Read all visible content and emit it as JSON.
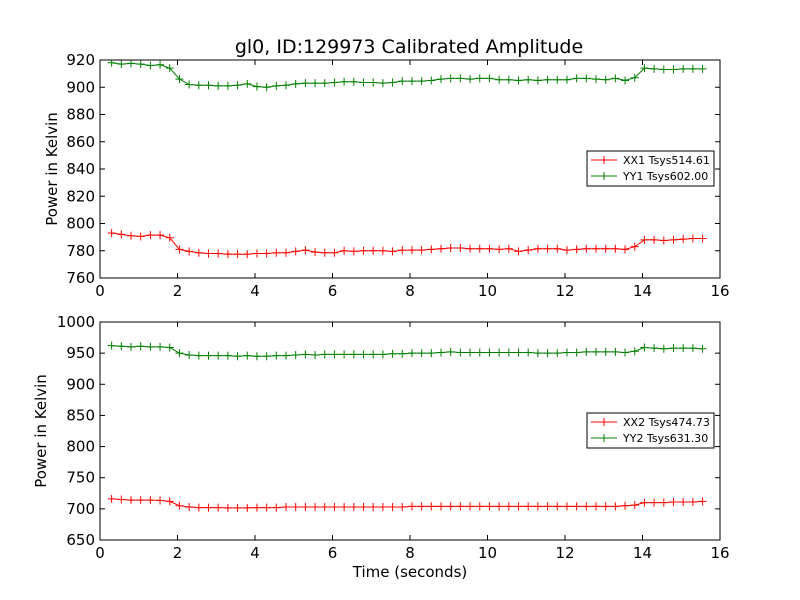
{
  "chart_data": [
    {
      "type": "line",
      "title": "gl0, ID:129973 Calibrated Amplitude",
      "xlabel": "",
      "ylabel": "Power in Kelvin",
      "xlim": [
        0,
        16
      ],
      "ylim": [
        760,
        920
      ],
      "xticks": [
        "0",
        "2",
        "4",
        "6",
        "8",
        "10",
        "12",
        "14",
        "16"
      ],
      "yticks": [
        "760",
        "780",
        "800",
        "820",
        "840",
        "860",
        "880",
        "900",
        "920"
      ],
      "legend_position": "center-right",
      "x": [
        0.3,
        0.55,
        0.8,
        1.05,
        1.3,
        1.55,
        1.8,
        2.05,
        2.3,
        2.55,
        2.8,
        3.05,
        3.3,
        3.55,
        3.8,
        4.05,
        4.3,
        4.55,
        4.8,
        5.05,
        5.3,
        5.55,
        5.8,
        6.05,
        6.3,
        6.55,
        6.8,
        7.05,
        7.3,
        7.55,
        7.8,
        8.05,
        8.3,
        8.55,
        8.8,
        9.05,
        9.3,
        9.55,
        9.8,
        10.05,
        10.3,
        10.55,
        10.8,
        11.05,
        11.3,
        11.55,
        11.8,
        12.05,
        12.3,
        12.55,
        12.8,
        13.05,
        13.3,
        13.55,
        13.8,
        14.05,
        14.3,
        14.55,
        14.8,
        15.05,
        15.3,
        15.55
      ],
      "series": [
        {
          "name": "XX1 Tsys514.61",
          "color": "#ff0000",
          "values": [
            793,
            792,
            791,
            790.5,
            791.5,
            791.5,
            789.5,
            781,
            779.5,
            778.5,
            778,
            778,
            777.5,
            777.5,
            777.5,
            778,
            778,
            778.5,
            778.5,
            779.5,
            780.5,
            779,
            778.5,
            778.5,
            780,
            779.5,
            780,
            780,
            780,
            779.5,
            780.5,
            780.5,
            780.5,
            781,
            781.5,
            782,
            782,
            781.5,
            781.5,
            781.5,
            781,
            781.5,
            779.5,
            780.5,
            781.5,
            781.5,
            781.5,
            780.5,
            781,
            781.5,
            781.5,
            781.5,
            781.5,
            781,
            783,
            788,
            788,
            787.5,
            788,
            788.5,
            789,
            789
          ]
        },
        {
          "name": "YY1 Tsys602.00",
          "color": "#008000",
          "values": [
            918,
            917,
            917.5,
            917,
            916,
            916.5,
            914,
            906,
            902,
            901.5,
            901.5,
            901,
            901,
            901.5,
            902.5,
            900.5,
            900,
            901,
            901.5,
            902.5,
            903,
            903,
            903,
            903.5,
            904,
            904,
            903.5,
            903.5,
            903,
            903.5,
            904.5,
            904.5,
            904.5,
            905,
            906,
            906.5,
            906.5,
            906,
            906.5,
            906.5,
            905.5,
            905.5,
            905,
            905.5,
            905,
            905.5,
            905.5,
            905.5,
            906.5,
            906.5,
            906,
            905.5,
            906.5,
            905,
            907,
            914,
            913.5,
            913,
            913,
            913.5,
            913.5,
            913.5
          ]
        }
      ]
    },
    {
      "type": "line",
      "title": "",
      "xlabel": "Time (seconds)",
      "ylabel": "Power in Kelvin",
      "xlim": [
        0,
        16
      ],
      "ylim": [
        650,
        1000
      ],
      "xticks": [
        "0",
        "2",
        "4",
        "6",
        "8",
        "10",
        "12",
        "14",
        "16"
      ],
      "yticks": [
        "650",
        "700",
        "750",
        "800",
        "850",
        "900",
        "950",
        "1000"
      ],
      "legend_position": "center-right",
      "x": [
        0.3,
        0.55,
        0.8,
        1.05,
        1.3,
        1.55,
        1.8,
        2.05,
        2.3,
        2.55,
        2.8,
        3.05,
        3.3,
        3.55,
        3.8,
        4.05,
        4.3,
        4.55,
        4.8,
        5.05,
        5.3,
        5.55,
        5.8,
        6.05,
        6.3,
        6.55,
        6.8,
        7.05,
        7.3,
        7.55,
        7.8,
        8.05,
        8.3,
        8.55,
        8.8,
        9.05,
        9.3,
        9.55,
        9.8,
        10.05,
        10.3,
        10.55,
        10.8,
        11.05,
        11.3,
        11.55,
        11.8,
        12.05,
        12.3,
        12.55,
        12.8,
        13.05,
        13.3,
        13.55,
        13.8,
        14.05,
        14.3,
        14.55,
        14.8,
        15.05,
        15.3,
        15.55
      ],
      "series": [
        {
          "name": "XX2 Tsys474.73",
          "color": "#ff0000",
          "values": [
            716,
            715,
            714,
            714,
            714,
            713.5,
            712,
            705,
            703,
            702,
            702,
            702,
            701.5,
            701.5,
            701.5,
            702,
            702,
            702,
            703,
            703,
            703,
            703,
            703,
            703,
            703,
            703,
            703,
            703,
            703,
            703,
            703,
            704,
            704,
            704,
            704,
            704,
            704,
            704,
            704,
            704,
            704,
            704,
            704,
            704,
            704,
            704,
            704,
            704,
            704,
            704,
            704,
            704,
            704,
            705,
            706,
            710,
            710,
            710,
            711,
            711,
            711,
            712
          ]
        },
        {
          "name": "YY2 Tsys631.30",
          "color": "#008000",
          "values": [
            962,
            961,
            960,
            961,
            960,
            960,
            959,
            950,
            947,
            946,
            946,
            946,
            946,
            945,
            946,
            945,
            945,
            946,
            946,
            947,
            948,
            947,
            948,
            948,
            948,
            948,
            948,
            948,
            948,
            949,
            949,
            950,
            950,
            950,
            951,
            952,
            951,
            951,
            951,
            951,
            951,
            951,
            951,
            951,
            950,
            950,
            950,
            951,
            951,
            952,
            952,
            952,
            952,
            951,
            953,
            959,
            958,
            957,
            958,
            958,
            958,
            957
          ]
        }
      ]
    }
  ]
}
